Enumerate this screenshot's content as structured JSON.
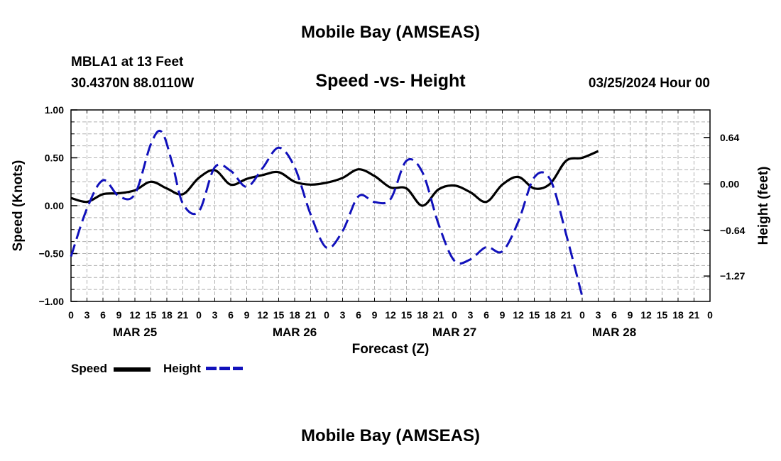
{
  "header": {
    "title_top": "Mobile Bay (AMSEAS)",
    "title_bottom": "Mobile Bay (AMSEAS)",
    "station": "MBLA1 at 13 Feet",
    "coords": "30.4370N  88.0110W",
    "datetime": "03/25/2024 Hour 00"
  },
  "legend": {
    "speed_label": "Speed",
    "height_label": "Height"
  },
  "colors": {
    "speed": "#000000",
    "height": "#1111bb",
    "grid": "#b0b0b0"
  },
  "chart_data": {
    "type": "line",
    "title": "Speed -vs- Height",
    "xlabel": "Forecast (Z)",
    "ylabel": "Speed (Knots)",
    "y2label": "Height (feet)",
    "x": [
      0,
      3,
      6,
      9,
      12,
      15,
      18,
      21,
      24,
      27,
      30,
      33,
      36,
      39,
      42,
      45,
      48,
      51,
      54,
      57,
      60,
      63,
      66,
      69,
      72,
      75,
      78,
      81,
      84,
      87,
      90,
      93,
      96,
      99,
      102,
      105,
      108,
      111,
      114,
      117,
      120
    ],
    "x_tick_labels": [
      "0",
      "3",
      "6",
      "9",
      "12",
      "15",
      "18",
      "21",
      "0",
      "3",
      "6",
      "9",
      "12",
      "15",
      "18",
      "21",
      "0",
      "3",
      "6",
      "9",
      "12",
      "15",
      "18",
      "21",
      "0",
      "3",
      "6",
      "9",
      "12",
      "15",
      "18",
      "21",
      "0",
      "3",
      "6",
      "9",
      "12",
      "15",
      "18",
      "21",
      "0"
    ],
    "day_labels": [
      {
        "label": "MAR 25",
        "x": 12
      },
      {
        "label": "MAR 26",
        "x": 42
      },
      {
        "label": "MAR 27",
        "x": 72
      },
      {
        "label": "MAR 28",
        "x": 102
      }
    ],
    "ylim": [
      -1.0,
      1.0
    ],
    "y_ticks": [
      "1.00",
      "0.50",
      "0.00",
      "-0.50",
      "-1.00"
    ],
    "y2lim": [
      -1.62,
      1.02
    ],
    "y2_ticks": [
      "0.64",
      "0.00",
      "-0.64",
      "-1.27"
    ],
    "series": [
      {
        "name": "Speed",
        "axis": "left",
        "style": "solid",
        "points": [
          [
            0,
            0.08
          ],
          [
            3,
            0.04
          ],
          [
            6,
            0.12
          ],
          [
            9,
            0.13
          ],
          [
            12,
            0.16
          ],
          [
            15,
            0.25
          ],
          [
            18,
            0.18
          ],
          [
            21,
            0.12
          ],
          [
            24,
            0.29
          ],
          [
            27,
            0.37
          ],
          [
            30,
            0.22
          ],
          [
            33,
            0.28
          ],
          [
            36,
            0.32
          ],
          [
            39,
            0.35
          ],
          [
            42,
            0.25
          ],
          [
            45,
            0.22
          ],
          [
            48,
            0.24
          ],
          [
            51,
            0.29
          ],
          [
            54,
            0.38
          ],
          [
            57,
            0.31
          ],
          [
            60,
            0.19
          ],
          [
            63,
            0.18
          ],
          [
            66,
            0.0
          ],
          [
            69,
            0.17
          ],
          [
            72,
            0.21
          ],
          [
            75,
            0.14
          ],
          [
            78,
            0.04
          ],
          [
            81,
            0.22
          ],
          [
            84,
            0.3
          ],
          [
            87,
            0.18
          ],
          [
            90,
            0.23
          ],
          [
            93,
            0.47
          ],
          [
            96,
            0.5
          ],
          [
            99,
            0.57
          ]
        ]
      },
      {
        "name": "Height",
        "axis": "right",
        "style": "dashed",
        "points": [
          [
            0,
            -1.0
          ],
          [
            3,
            -0.34
          ],
          [
            6,
            0.05
          ],
          [
            9,
            -0.17
          ],
          [
            12,
            -0.14
          ],
          [
            15,
            0.55
          ],
          [
            17,
            0.72
          ],
          [
            19,
            0.29
          ],
          [
            21,
            -0.27
          ],
          [
            24,
            -0.38
          ],
          [
            27,
            0.23
          ],
          [
            30,
            0.18
          ],
          [
            33,
            -0.04
          ],
          [
            36,
            0.22
          ],
          [
            39,
            0.5
          ],
          [
            42,
            0.23
          ],
          [
            45,
            -0.42
          ],
          [
            48,
            -0.88
          ],
          [
            51,
            -0.65
          ],
          [
            54,
            -0.17
          ],
          [
            57,
            -0.25
          ],
          [
            60,
            -0.21
          ],
          [
            63,
            0.32
          ],
          [
            66,
            0.16
          ],
          [
            69,
            -0.55
          ],
          [
            72,
            -1.06
          ],
          [
            75,
            -1.04
          ],
          [
            78,
            -0.87
          ],
          [
            81,
            -0.93
          ],
          [
            84,
            -0.52
          ],
          [
            87,
            0.09
          ],
          [
            90,
            0.06
          ],
          [
            93,
            -0.7
          ],
          [
            96,
            -1.55
          ]
        ]
      }
    ]
  }
}
